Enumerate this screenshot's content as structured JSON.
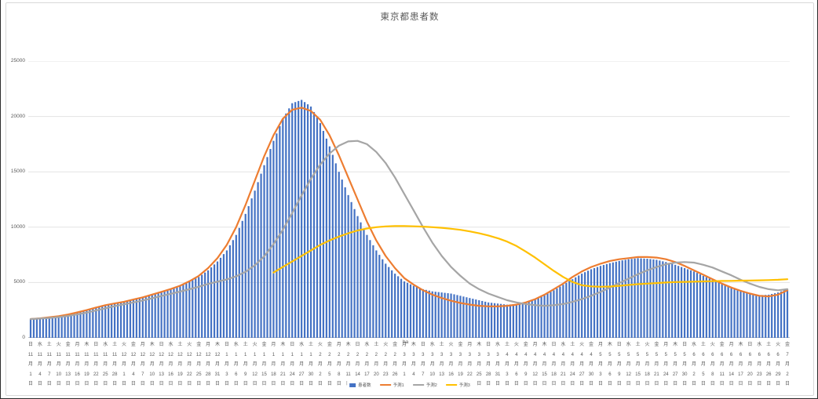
{
  "chart_data": {
    "type": "bar",
    "title": "東京都患者数",
    "xlabel": "",
    "ylabel": "",
    "ylim": [
      0,
      25000
    ],
    "yticks": [
      0,
      5000,
      10000,
      15000,
      20000,
      25000
    ],
    "grid": true,
    "legend_position": "bottom",
    "sample_interval_days": 3,
    "colors": {
      "axis": "#bfbfbf",
      "gridline": "#e3e3e3",
      "text": "#595959"
    },
    "categories": [
      [
        "日",
        11,
        1
      ],
      [
        "水",
        11,
        4
      ],
      [
        "土",
        11,
        7
      ],
      [
        "火",
        11,
        10
      ],
      [
        "金",
        11,
        13
      ],
      [
        "月",
        11,
        16
      ],
      [
        "木",
        11,
        19
      ],
      [
        "日",
        11,
        22
      ],
      [
        "水",
        11,
        25
      ],
      [
        "土",
        11,
        28
      ],
      [
        "火",
        12,
        1
      ],
      [
        "金",
        12,
        4
      ],
      [
        "月",
        12,
        7
      ],
      [
        "木",
        12,
        10
      ],
      [
        "日",
        12,
        13
      ],
      [
        "水",
        12,
        16
      ],
      [
        "土",
        12,
        19
      ],
      [
        "火",
        12,
        22
      ],
      [
        "金",
        12,
        25
      ],
      [
        "月",
        12,
        28
      ],
      [
        "木",
        12,
        31
      ],
      [
        "日",
        1,
        3
      ],
      [
        "水",
        1,
        6
      ],
      [
        "土",
        1,
        9
      ],
      [
        "火",
        1,
        12
      ],
      [
        "金",
        1,
        15
      ],
      [
        "月",
        1,
        18
      ],
      [
        "木",
        1,
        21
      ],
      [
        "日",
        1,
        24
      ],
      [
        "水",
        1,
        27
      ],
      [
        "土",
        1,
        30
      ],
      [
        "火",
        2,
        2
      ],
      [
        "金",
        2,
        5
      ],
      [
        "月",
        2,
        8
      ],
      [
        "木",
        2,
        11
      ],
      [
        "日",
        2,
        14
      ],
      [
        "水",
        2,
        17
      ],
      [
        "土",
        2,
        20
      ],
      [
        "火",
        2,
        23
      ],
      [
        "金",
        2,
        26
      ],
      [
        "月",
        3,
        1
      ],
      [
        "木",
        3,
        4
      ],
      [
        "日",
        3,
        7
      ],
      [
        "水",
        3,
        10
      ],
      [
        "土",
        3,
        13
      ],
      [
        "火",
        3,
        16
      ],
      [
        "金",
        3,
        19
      ],
      [
        "月",
        3,
        22
      ],
      [
        "木",
        3,
        25
      ],
      [
        "日",
        3,
        28
      ],
      [
        "水",
        3,
        31
      ],
      [
        "土",
        4,
        3
      ],
      [
        "火",
        4,
        6
      ],
      [
        "金",
        4,
        9
      ],
      [
        "月",
        4,
        12
      ],
      [
        "木",
        4,
        15
      ],
      [
        "日",
        4,
        18
      ],
      [
        "水",
        4,
        21
      ],
      [
        "土",
        4,
        24
      ],
      [
        "火",
        4,
        27
      ],
      [
        "金",
        4,
        30
      ],
      [
        "月",
        5,
        3
      ],
      [
        "木",
        5,
        6
      ],
      [
        "日",
        5,
        9
      ],
      [
        "水",
        5,
        12
      ],
      [
        "土",
        5,
        15
      ],
      [
        "火",
        5,
        18
      ],
      [
        "金",
        5,
        21
      ],
      [
        "月",
        5,
        24
      ],
      [
        "木",
        5,
        27
      ],
      [
        "日",
        5,
        30
      ],
      [
        "水",
        6,
        2
      ],
      [
        "土",
        6,
        5
      ],
      [
        "火",
        6,
        8
      ],
      [
        "金",
        6,
        11
      ],
      [
        "月",
        6,
        14
      ],
      [
        "木",
        6,
        17
      ],
      [
        "日",
        6,
        20
      ],
      [
        "水",
        6,
        23
      ],
      [
        "土",
        6,
        26
      ],
      [
        "火",
        6,
        29
      ],
      [
        "金",
        7,
        2
      ]
    ],
    "series": [
      {
        "name": "患者数",
        "type": "bar",
        "color": "#4472C4",
        "values": [
          1700,
          1750,
          1850,
          1950,
          2100,
          2300,
          2500,
          2700,
          2900,
          3100,
          3250,
          3450,
          3650,
          3900,
          4150,
          4400,
          4700,
          5100,
          5500,
          6100,
          6900,
          7900,
          9300,
          11200,
          13300,
          15600,
          17800,
          19800,
          21200,
          21500,
          20900,
          19400,
          17300,
          15000,
          12900,
          11000,
          9300,
          7900,
          6700,
          5800,
          5100,
          4700,
          4400,
          4200,
          4100,
          4000,
          3800,
          3600,
          3400,
          3200,
          3100,
          3000,
          3050,
          3200,
          3500,
          3900,
          4300,
          4800,
          5300,
          5800,
          6200,
          6500,
          6750,
          6950,
          7100,
          7200,
          7150,
          7050,
          6850,
          6600,
          6300,
          6000,
          5600,
          5250,
          4900,
          4600,
          4300,
          4050,
          3850,
          3900,
          4100,
          4400
        ]
      },
      {
        "name": "予測1",
        "type": "line",
        "color": "#ED7D31",
        "values": [
          1700,
          1760,
          1860,
          1960,
          2110,
          2300,
          2510,
          2740,
          2950,
          3110,
          3260,
          3460,
          3660,
          3910,
          4160,
          4410,
          4710,
          5110,
          5600,
          6300,
          7200,
          8400,
          10000,
          12000,
          14200,
          16400,
          18300,
          19800,
          20600,
          20800,
          20500,
          19700,
          18300,
          16500,
          14500,
          12500,
          10500,
          8800,
          7400,
          6300,
          5400,
          4800,
          4300,
          3900,
          3600,
          3350,
          3150,
          3000,
          2900,
          2850,
          2850,
          2900,
          3000,
          3200,
          3500,
          3900,
          4400,
          4900,
          5500,
          6000,
          6400,
          6700,
          6950,
          7100,
          7200,
          7300,
          7300,
          7250,
          7100,
          6850,
          6500,
          6100,
          5700,
          5300,
          4900,
          4550,
          4250,
          4000,
          3800,
          3750,
          3900,
          4300
        ]
      },
      {
        "name": "予測2",
        "type": "line",
        "color": "#A5A5A5",
        "values": [
          1700,
          1740,
          1800,
          1880,
          1980,
          2120,
          2280,
          2470,
          2670,
          2870,
          3030,
          3200,
          3380,
          3580,
          3780,
          3980,
          4180,
          4390,
          4620,
          4870,
          5080,
          5280,
          5560,
          5960,
          6560,
          7360,
          8460,
          9760,
          11260,
          12860,
          14360,
          15660,
          16660,
          17360,
          17750,
          17800,
          17500,
          16800,
          15800,
          14500,
          13000,
          11500,
          10000,
          8600,
          7400,
          6400,
          5600,
          4900,
          4400,
          4000,
          3700,
          3400,
          3200,
          3050,
          2950,
          2900,
          2950,
          3050,
          3250,
          3500,
          3800,
          4150,
          4550,
          4950,
          5350,
          5750,
          6100,
          6400,
          6650,
          6800,
          6850,
          6800,
          6600,
          6350,
          6000,
          5650,
          5250,
          4900,
          4600,
          4400,
          4300,
          4400
        ]
      },
      {
        "name": "予測3",
        "type": "line",
        "color": "#FFC000",
        "values": [
          null,
          null,
          null,
          null,
          null,
          null,
          null,
          null,
          null,
          null,
          null,
          null,
          null,
          null,
          null,
          null,
          null,
          null,
          null,
          null,
          null,
          null,
          null,
          null,
          null,
          null,
          5900,
          6400,
          6900,
          7400,
          7900,
          8400,
          8800,
          9150,
          9450,
          9700,
          9880,
          10000,
          10070,
          10100,
          10100,
          10080,
          10050,
          10000,
          9940,
          9860,
          9760,
          9620,
          9450,
          9250,
          9000,
          8700,
          8300,
          7800,
          7250,
          6650,
          6050,
          5500,
          5050,
          4750,
          4650,
          4620,
          4640,
          4700,
          4780,
          4850,
          4900,
          4950,
          5000,
          5040,
          5060,
          5080,
          5100,
          5120,
          5140,
          5150,
          5170,
          5180,
          5200,
          5220,
          5250,
          5300
        ]
      }
    ],
    "annotations": [
      {
        "text": "ha",
        "index": 40
      }
    ],
    "month_suffix": "月",
    "day_suffix": "日"
  }
}
